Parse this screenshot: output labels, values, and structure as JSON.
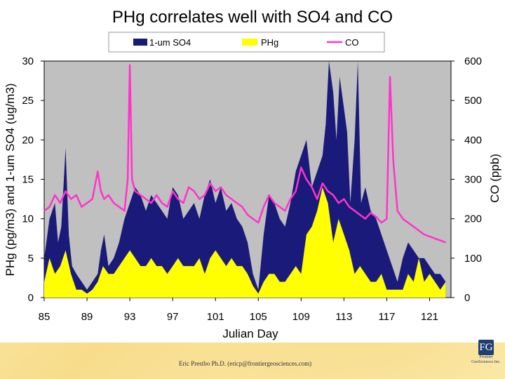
{
  "footer": {
    "credit": "Eric Prestbo Ph.D. (ericp@frontiergeosciences.com)",
    "logo_mark": "FG",
    "logo_line1": "Frontier",
    "logo_line2": "GeoSciences Inc."
  },
  "chart_data": {
    "type": "area",
    "title": "PHg correlates well with SO4 and CO",
    "xlabel": "Julian Day",
    "ylabel": "PHg (pg/m3) and 1-um SO4 (ug/m3)",
    "y2label": "CO (ppb)",
    "xlim": [
      85,
      123
    ],
    "ylim": [
      0,
      30
    ],
    "y2lim": [
      0,
      600
    ],
    "xticks": [
      "85",
      "89",
      "93",
      "97",
      "101",
      "105",
      "109",
      "113",
      "117",
      "121"
    ],
    "yticks": [
      "0",
      "5",
      "10",
      "15",
      "20",
      "25",
      "30"
    ],
    "y2ticks": [
      "0",
      "100",
      "200",
      "300",
      "400",
      "500",
      "600"
    ],
    "grid": false,
    "legend_position": "top",
    "colors": {
      "so4": "#1a1a7a",
      "phg": "#ffff00",
      "co": "#ff33cc",
      "plot_bg": "#c0c0c0"
    },
    "series": [
      {
        "name": "1-um SO4",
        "axis": "left",
        "style": "area",
        "x": [
          85.0,
          85.5,
          86.0,
          86.3,
          86.6,
          87.0,
          87.3,
          87.6,
          88.0,
          88.5,
          89.0,
          89.5,
          90.0,
          90.3,
          90.6,
          91.0,
          91.5,
          92.0,
          92.5,
          93.0,
          93.5,
          94.0,
          94.5,
          95.0,
          95.5,
          96.0,
          96.5,
          97.0,
          97.5,
          98.0,
          98.5,
          99.0,
          99.5,
          100.0,
          100.5,
          101.0,
          101.5,
          102.0,
          102.5,
          103.0,
          103.5,
          104.0,
          104.5,
          105.0,
          105.5,
          106.0,
          106.5,
          107.0,
          107.5,
          108.0,
          108.5,
          109.0,
          109.5,
          110.0,
          110.5,
          111.0,
          111.3,
          111.6,
          112.0,
          112.3,
          112.6,
          113.0,
          113.3,
          113.6,
          114.0,
          114.3,
          114.6,
          115.0,
          115.5,
          116.0,
          116.5,
          117.0,
          117.5,
          118.0,
          118.5,
          119.0,
          119.5,
          120.0,
          120.5,
          121.0,
          121.5,
          122.0,
          122.5
        ],
        "values": [
          5,
          10,
          12,
          7,
          9,
          19,
          8,
          4,
          3,
          2,
          1,
          2,
          3,
          6,
          8,
          4,
          5,
          7,
          10,
          12,
          14,
          13,
          11,
          13,
          12,
          11,
          10,
          14,
          13,
          10,
          11,
          12,
          10,
          13,
          15,
          12,
          14,
          11,
          12,
          10,
          9,
          7,
          3,
          1,
          8,
          13,
          12,
          10,
          9,
          12,
          16,
          18,
          20,
          14,
          16,
          18,
          22,
          30,
          26,
          20,
          28,
          24,
          21,
          12,
          20,
          30,
          12,
          14,
          11,
          10,
          8,
          6,
          4,
          2,
          5,
          7,
          6,
          5,
          5,
          4,
          3,
          3,
          2
        ]
      },
      {
        "name": "PHg",
        "axis": "left",
        "style": "area",
        "x": [
          85.0,
          85.5,
          86.0,
          86.5,
          87.0,
          87.5,
          88.0,
          88.5,
          89.0,
          89.5,
          90.0,
          90.5,
          91.0,
          91.5,
          92.0,
          92.5,
          93.0,
          93.5,
          94.0,
          94.5,
          95.0,
          95.5,
          96.0,
          96.5,
          97.0,
          97.5,
          98.0,
          98.5,
          99.0,
          99.5,
          100.0,
          100.5,
          101.0,
          101.5,
          102.0,
          102.5,
          103.0,
          103.5,
          104.0,
          104.5,
          105.0,
          105.5,
          106.0,
          106.5,
          107.0,
          107.5,
          108.0,
          108.5,
          109.0,
          109.5,
          110.0,
          110.5,
          111.0,
          111.5,
          112.0,
          112.5,
          113.0,
          113.5,
          114.0,
          114.5,
          115.0,
          115.5,
          116.0,
          116.5,
          117.0,
          117.5,
          118.0,
          118.5,
          119.0,
          119.5,
          120.0,
          120.5,
          121.0,
          121.5,
          122.0,
          122.5
        ],
        "values": [
          2,
          5,
          3,
          4,
          6,
          3,
          1,
          1,
          0.5,
          1,
          2,
          4,
          3,
          3,
          4,
          5,
          6,
          5,
          4,
          4,
          5,
          4,
          4,
          3,
          4,
          5,
          4,
          4,
          4,
          5,
          3,
          5,
          6,
          5,
          4,
          5,
          4,
          4,
          3,
          1.5,
          0.5,
          2,
          3,
          3,
          2,
          2,
          3,
          4,
          3,
          8,
          9,
          11,
          14,
          12,
          7,
          10,
          8,
          6,
          3,
          4,
          3,
          2,
          2,
          3,
          1,
          1,
          1,
          1,
          3,
          2,
          5,
          2,
          3,
          2,
          1,
          2
        ]
      },
      {
        "name": "CO",
        "axis": "right",
        "style": "line",
        "x": [
          85.0,
          85.5,
          86.0,
          86.5,
          87.0,
          87.5,
          88.0,
          88.5,
          89.0,
          89.5,
          90.0,
          90.3,
          90.6,
          91.0,
          91.5,
          92.0,
          92.5,
          92.8,
          93.0,
          93.2,
          93.5,
          94.0,
          94.5,
          95.0,
          95.5,
          96.0,
          96.5,
          97.0,
          97.5,
          98.0,
          98.5,
          99.0,
          99.5,
          100.0,
          100.5,
          101.0,
          101.5,
          102.0,
          102.5,
          103.0,
          103.5,
          104.0,
          104.5,
          105.0,
          105.5,
          106.0,
          106.5,
          107.0,
          107.5,
          108.0,
          108.5,
          109.0,
          109.5,
          110.0,
          110.5,
          111.0,
          111.5,
          112.0,
          112.5,
          113.0,
          113.5,
          114.0,
          114.5,
          115.0,
          115.5,
          116.0,
          116.5,
          117.0,
          117.3,
          117.6,
          118.0,
          118.5,
          119.0,
          119.5,
          120.0,
          120.5,
          121.0,
          121.5,
          122.0,
          122.5
        ],
        "values": [
          220,
          230,
          260,
          240,
          270,
          250,
          260,
          230,
          240,
          250,
          320,
          270,
          250,
          260,
          240,
          230,
          220,
          300,
          590,
          300,
          270,
          260,
          250,
          240,
          260,
          240,
          230,
          270,
          250,
          240,
          280,
          270,
          250,
          260,
          290,
          270,
          280,
          260,
          250,
          240,
          230,
          210,
          200,
          190,
          230,
          260,
          240,
          230,
          220,
          250,
          270,
          330,
          300,
          280,
          250,
          290,
          270,
          260,
          240,
          250,
          230,
          220,
          210,
          200,
          215,
          205,
          190,
          200,
          560,
          350,
          220,
          200,
          190,
          180,
          170,
          160,
          155,
          150,
          145,
          140
        ]
      }
    ]
  }
}
